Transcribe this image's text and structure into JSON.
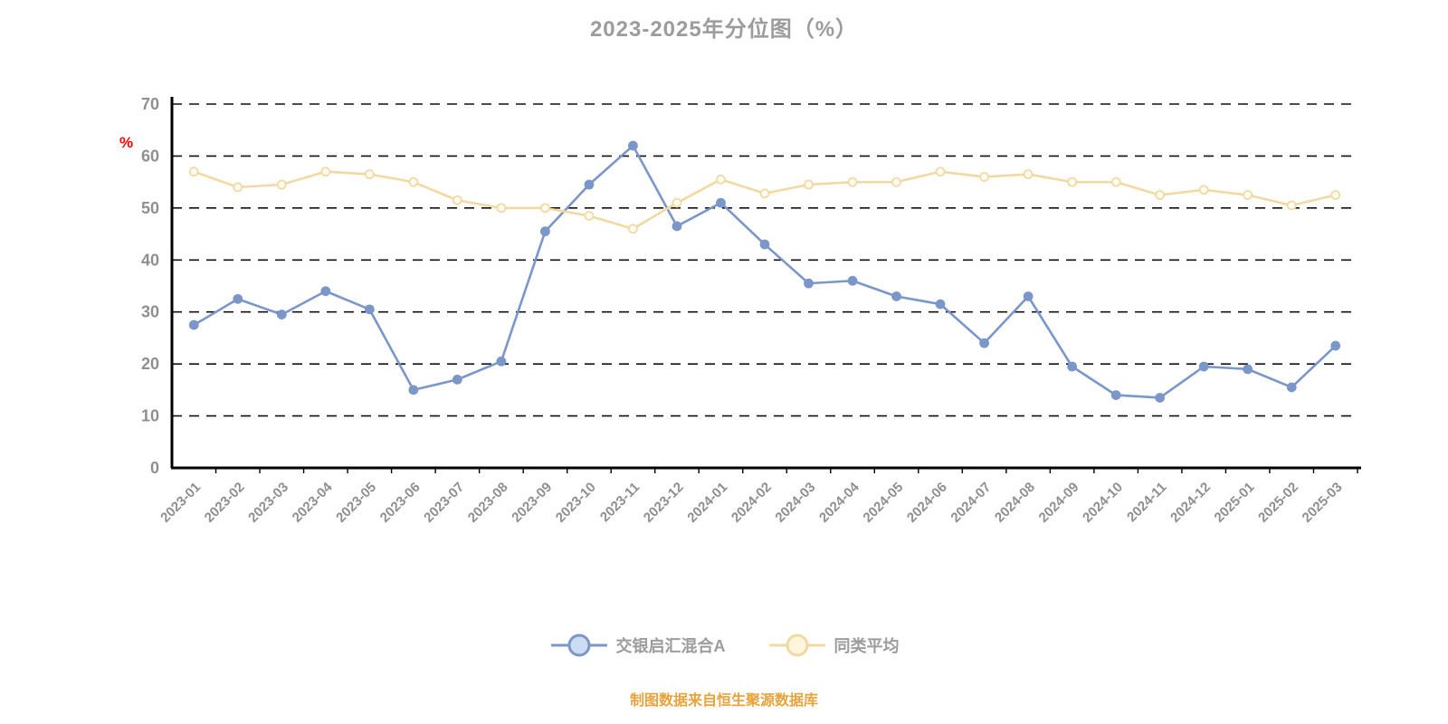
{
  "title": "2023-2025年分位图（%）",
  "caption": "制图数据来自恒生聚源数据库",
  "colors": {
    "axis_text": "#8f8f8f",
    "title_text": "#9c9c9c",
    "grid_line": "#111111",
    "axis_line": "#000000",
    "ylabel_text": "#ff0000",
    "caption_text": "#e8a33d"
  },
  "chart_data": {
    "type": "line",
    "title": "2023-2025年分位图（%）",
    "xlabel": "",
    "ylabel": "%",
    "ylim": [
      0,
      70
    ],
    "yticks": [
      0,
      10,
      20,
      30,
      40,
      50,
      60,
      70
    ],
    "grid": "horizontal-dashed",
    "legend_position": "bottom",
    "categories": [
      "2023-01",
      "2023-02",
      "2023-03",
      "2023-04",
      "2023-05",
      "2023-06",
      "2023-07",
      "2023-08",
      "2023-09",
      "2023-10",
      "2023-11",
      "2023-12",
      "2024-01",
      "2024-02",
      "2024-03",
      "2024-04",
      "2024-05",
      "2024-06",
      "2024-07",
      "2024-08",
      "2024-09",
      "2024-10",
      "2024-11",
      "2024-12",
      "2025-01",
      "2025-02",
      "2025-03"
    ],
    "series": [
      {
        "name": "交银启汇混合A",
        "color": "#7b96c9",
        "marker_fill": "#7b96c9",
        "legend_fill": "#ccdcf2",
        "values": [
          27.5,
          32.5,
          29.5,
          34,
          30.5,
          15,
          17,
          20.5,
          45.5,
          54.5,
          62,
          46.5,
          51,
          43,
          35.5,
          36,
          33,
          31.5,
          24,
          33,
          19.5,
          14,
          13.5,
          19.5,
          19,
          15.5,
          23.5
        ]
      },
      {
        "name": "同类平均",
        "color": "#f2d9a2",
        "marker_fill": "#fffdf3",
        "legend_fill": "#fdf6dd",
        "values": [
          57,
          54,
          54.5,
          57,
          56.5,
          55,
          51.5,
          50,
          50,
          48.5,
          46,
          51,
          55.5,
          52.8,
          54.5,
          55,
          55,
          57,
          56,
          56.5,
          55,
          55,
          52.5,
          53.5,
          52.5,
          50.5,
          52.5
        ]
      }
    ]
  }
}
